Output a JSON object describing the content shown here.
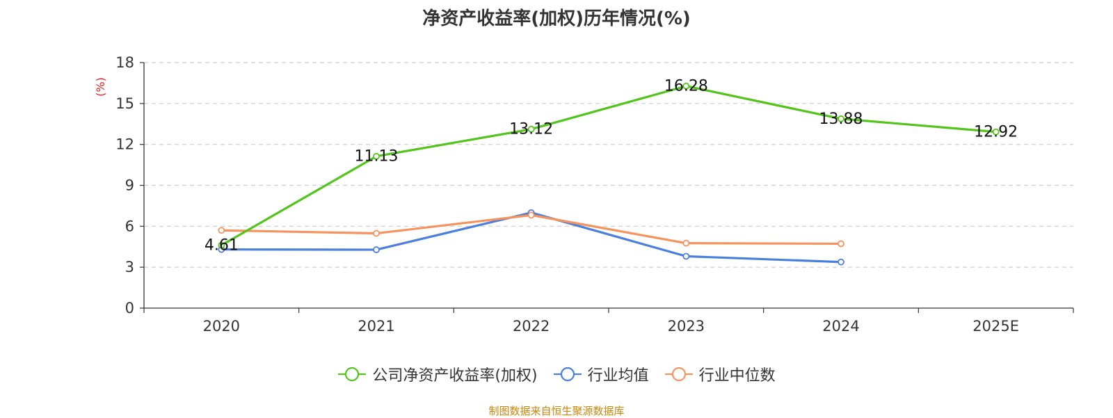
{
  "chart_data": {
    "type": "line",
    "title": "净资产收益率(加权)历年情况(%)",
    "ylabel": "(%)",
    "xlabel": "",
    "categories": [
      "2020",
      "2021",
      "2022",
      "2023",
      "2024",
      "2025E"
    ],
    "ylim": [
      0,
      18
    ],
    "yticks": [
      0,
      3,
      6,
      9,
      12,
      15,
      18
    ],
    "grid": true,
    "legend_position": "bottom",
    "series": [
      {
        "name": "公司净资产收益率(加权)",
        "color": "#52c41a",
        "values": [
          4.61,
          11.13,
          13.12,
          16.28,
          13.88,
          12.92
        ],
        "show_labels": true
      },
      {
        "name": "行业均值",
        "color": "#4a7fdc",
        "values": [
          4.3,
          4.28,
          7.0,
          3.8,
          3.38,
          null
        ],
        "show_labels": false
      },
      {
        "name": "行业中位数",
        "color": "#f5925e",
        "values": [
          5.7,
          5.48,
          6.82,
          4.76,
          4.72,
          null
        ],
        "show_labels": false
      }
    ]
  },
  "source_note": "制图数据来自恒生聚源数据库"
}
